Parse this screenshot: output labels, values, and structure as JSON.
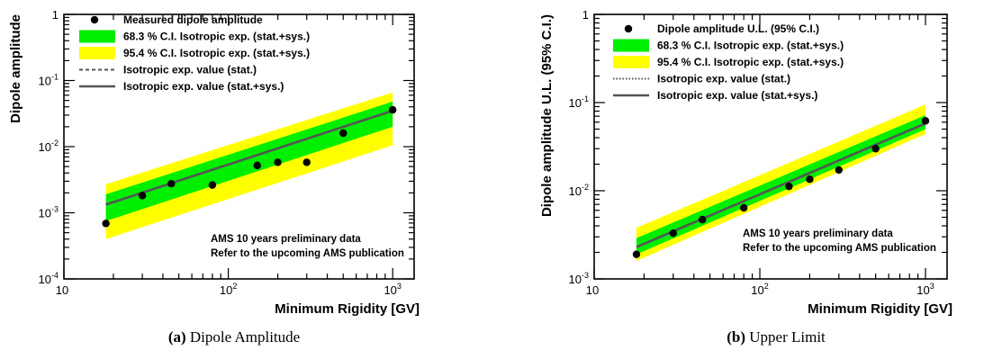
{
  "chart_data": [
    {
      "type": "scatter",
      "panel_label": "(a)",
      "caption": "Dipole Amplitude",
      "xlabel": "Minimum Rigidity [GV]",
      "ylabel": "Dipole amplitude",
      "xscale": "log",
      "yscale": "log",
      "xlim": [
        10,
        1350
      ],
      "ylim": [
        0.0001,
        1
      ],
      "x_tick_labels": [
        "10",
        "10^2",
        "10^3"
      ],
      "y_tick_labels": [
        "10^-4",
        "10^-3",
        "10^-2",
        "10^-1",
        "1"
      ],
      "legend": [
        {
          "label": "Measured dipole amplitude",
          "kind": "marker"
        },
        {
          "label": "68.3 % C.I. Isotropic exp. (stat.+sys.)",
          "kind": "band",
          "color": "#00ee00"
        },
        {
          "label": "95.4 % C.I. Isotropic exp. (stat.+sys.)",
          "kind": "band",
          "color": "#ffff00"
        },
        {
          "label": "Isotropic exp. value (stat.)",
          "kind": "dashed"
        },
        {
          "label": "Isotropic exp. value (stat.+sys.)",
          "kind": "solid"
        }
      ],
      "annotation": [
        "AMS 10 years preliminary data",
        "Refer to the upcoming AMS publication"
      ],
      "points": {
        "x": [
          18,
          30,
          45,
          80,
          150,
          200,
          300,
          500,
          1000
        ],
        "y": [
          0.00069,
          0.00182,
          0.00275,
          0.00263,
          0.0052,
          0.0058,
          0.0058,
          0.016,
          0.036
        ]
      },
      "expected": {
        "x": [
          18,
          1000
        ],
        "y": [
          0.00133,
          0.035
        ]
      },
      "band68": {
        "x": [
          18,
          1000
        ],
        "lower": [
          0.00075,
          0.02
        ],
        "upper": [
          0.0019,
          0.048
        ]
      },
      "band95": {
        "x": [
          18,
          1000
        ],
        "lower": [
          0.0004,
          0.0105
        ],
        "upper": [
          0.0027,
          0.066
        ]
      }
    },
    {
      "type": "scatter",
      "panel_label": "(b)",
      "caption": "Upper Limit",
      "xlabel": "Minimum Rigidity [GV]",
      "ylabel": "Dipole amplitude U.L. (95% C.I.)",
      "xscale": "log",
      "yscale": "log",
      "xlim": [
        10,
        1350
      ],
      "ylim": [
        0.001,
        1
      ],
      "x_tick_labels": [
        "10",
        "10^2",
        "10^3"
      ],
      "y_tick_labels": [
        "10^-3",
        "10^-2",
        "10^-1",
        "1"
      ],
      "legend": [
        {
          "label": "Dipole amplitude U.L. (95% C.I.)",
          "kind": "marker"
        },
        {
          "label": "68.3 % C.I. Isotropic exp. (stat.+sys.)",
          "kind": "band",
          "color": "#00ee00"
        },
        {
          "label": "95.4 % C.I. Isotropic exp. (stat.+sys.)",
          "kind": "band",
          "color": "#ffff00"
        },
        {
          "label": "Isotropic exp. value (stat.)",
          "kind": "dotted"
        },
        {
          "label": "Isotropic exp. value (stat.+sys.)",
          "kind": "solid"
        }
      ],
      "annotation": [
        "AMS 10 years preliminary data",
        "Refer to the upcoming AMS publication"
      ],
      "points": {
        "x": [
          18,
          30,
          45,
          80,
          150,
          200,
          300,
          500,
          1000
        ],
        "y": [
          0.0019,
          0.0033,
          0.0047,
          0.0064,
          0.0112,
          0.0135,
          0.0172,
          0.03,
          0.062
        ]
      },
      "expected": {
        "x": [
          18,
          1000
        ],
        "y": [
          0.0023,
          0.058
        ]
      },
      "band68": {
        "x": [
          18,
          1000
        ],
        "lower": [
          0.0019,
          0.05
        ],
        "upper": [
          0.0029,
          0.072
        ]
      },
      "band95": {
        "x": [
          18,
          1000
        ],
        "lower": [
          0.0016,
          0.044
        ],
        "upper": [
          0.0038,
          0.095
        ]
      }
    }
  ]
}
